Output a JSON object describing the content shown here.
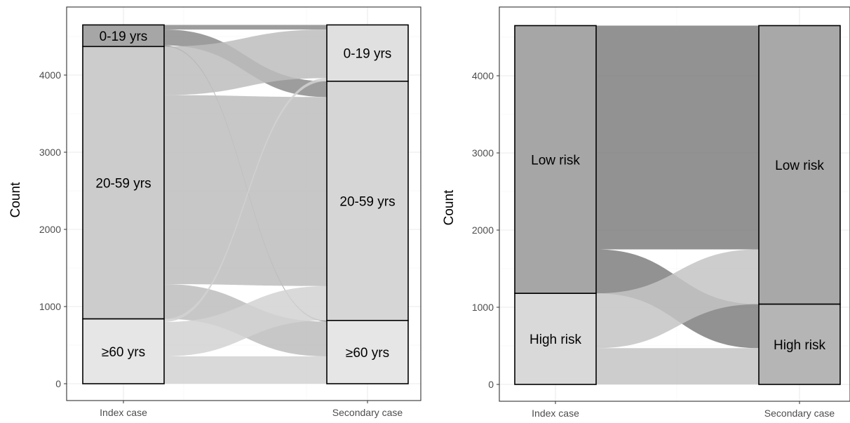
{
  "chart_data": [
    {
      "type": "alluvial",
      "title": "",
      "xlabel": "",
      "ylabel": "Count",
      "ylim": [
        0,
        4650
      ],
      "yticks": [
        0,
        1000,
        2000,
        3000,
        4000
      ],
      "grid": true,
      "axes": [
        "Index case",
        "Secondary case"
      ],
      "strata": {
        "index": [
          {
            "label": "0-19 yrs",
            "value": 280
          },
          {
            "label": "20-59 yrs",
            "value": 3530
          },
          {
            "label": "≥60 yrs",
            "value": 840
          }
        ],
        "secondary": [
          {
            "label": "0-19 yrs",
            "value": 730
          },
          {
            "label": "20-59 yrs",
            "value": 3100
          },
          {
            "label": "≥60 yrs",
            "value": 820
          }
        ]
      },
      "flows": [
        {
          "from": "0-19 yrs",
          "to": "0-19 yrs",
          "value": 60,
          "shade": "#8c8c8c"
        },
        {
          "from": "0-19 yrs",
          "to": "20-59 yrs",
          "value": 205,
          "shade": "#8c8c8c"
        },
        {
          "from": "0-19 yrs",
          "to": "≥60 yrs",
          "value": 15,
          "shade": "#8c8c8c"
        },
        {
          "from": "20-59 yrs",
          "to": "0-19 yrs",
          "value": 630,
          "shade": "#bdbdbd"
        },
        {
          "from": "20-59 yrs",
          "to": "20-59 yrs",
          "value": 2450,
          "shade": "#bdbdbd"
        },
        {
          "from": "20-59 yrs",
          "to": "≥60 yrs",
          "value": 450,
          "shade": "#bdbdbd"
        },
        {
          "from": "≥60 yrs",
          "to": "0-19 yrs",
          "value": 40,
          "shade": "#d2d2d2"
        },
        {
          "from": "≥60 yrs",
          "to": "20-59 yrs",
          "value": 445,
          "shade": "#d2d2d2"
        },
        {
          "from": "≥60 yrs",
          "to": "≥60 yrs",
          "value": 355,
          "shade": "#d2d2d2"
        }
      ],
      "stratum_fills": {
        "index": [
          "#a6a6a6",
          "#cccccc",
          "#e6e6e6"
        ],
        "secondary": [
          "#e0e0e0",
          "#d6d6d6",
          "#e6e6e6"
        ]
      }
    },
    {
      "type": "alluvial",
      "title": "",
      "xlabel": "",
      "ylabel": "Count",
      "ylim": [
        0,
        4650
      ],
      "yticks": [
        0,
        1000,
        2000,
        3000,
        4000
      ],
      "grid": true,
      "axes": [
        "Index case",
        "Secondary case"
      ],
      "strata": {
        "index": [
          {
            "label": "Low risk",
            "value": 3470
          },
          {
            "label": "High risk",
            "value": 1180
          }
        ],
        "secondary": [
          {
            "label": "Low risk",
            "value": 3610
          },
          {
            "label": "High risk",
            "value": 1040
          }
        ]
      },
      "flows": [
        {
          "from": "Low risk",
          "to": "Low risk",
          "value": 2900,
          "shade": "#7f7f7f"
        },
        {
          "from": "Low risk",
          "to": "High risk",
          "value": 570,
          "shade": "#7f7f7f"
        },
        {
          "from": "High risk",
          "to": "Low risk",
          "value": 710,
          "shade": "#c4c4c4"
        },
        {
          "from": "High risk",
          "to": "High risk",
          "value": 470,
          "shade": "#c4c4c4"
        }
      ],
      "stratum_fills": {
        "index": [
          "#a6a6a6",
          "#d9d9d9"
        ],
        "secondary": [
          "#a8a8a8",
          "#b5b5b5"
        ]
      }
    }
  ]
}
